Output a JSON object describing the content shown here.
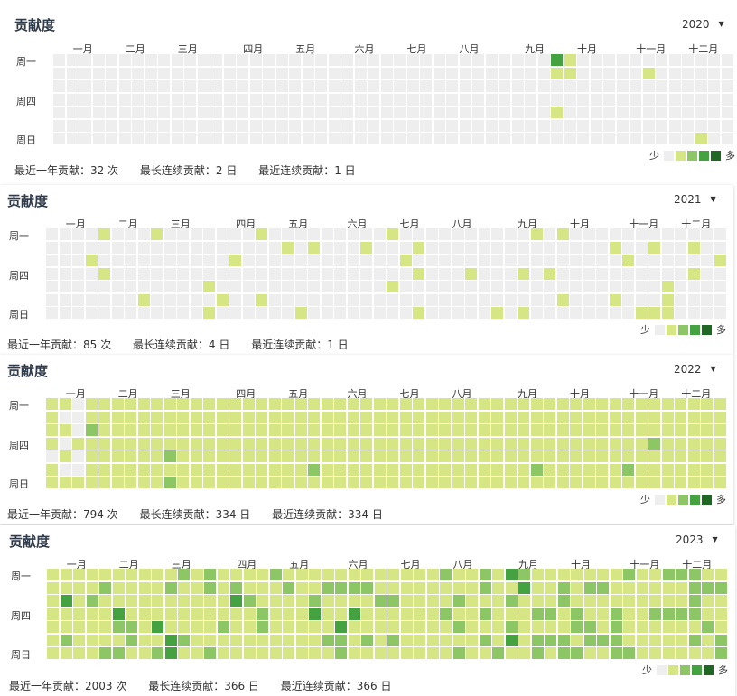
{
  "months": [
    "一月",
    "二月",
    "三月",
    "四月",
    "五月",
    "六月",
    "七月",
    "八月",
    "九月",
    "十月",
    "十一月",
    "十二月"
  ],
  "day_labels": [
    "周一",
    "周四",
    "周日"
  ],
  "legend": {
    "less": "少",
    "more": "多"
  },
  "colors": {
    "empty": "#eeeeee",
    "l1": "#d6e685",
    "l2": "#8cc665",
    "l3": "#44a340",
    "l4": "#1e6823"
  },
  "panels": [
    {
      "title": "贡献度",
      "year": "2020",
      "stats": {
        "total": "最近一年贡献：32 次",
        "longest": "最长连续贡献：2 日",
        "recent": "最近连续贡献：1 日"
      },
      "activity": "sparse-2020"
    },
    {
      "title": "贡献度",
      "year": "2021",
      "stats": {
        "total": "最近一年贡献：85 次",
        "longest": "最长连续贡献：4 日",
        "recent": "最近连续贡献：1 日"
      },
      "activity": "moderate-2021"
    },
    {
      "title": "贡献度",
      "year": "2022",
      "stats": {
        "total": "最近一年贡献：794 次",
        "longest": "最长连续贡献：334 日",
        "recent": "最近连续贡献：334 日"
      },
      "activity": "dense-2022"
    },
    {
      "title": "贡献度",
      "year": "2023",
      "stats": {
        "total": "最近一年贡献：2003 次",
        "longest": "最长连续贡献：366 日",
        "recent": "最近连续贡献：366 日"
      },
      "activity": "full-2023"
    }
  ]
}
